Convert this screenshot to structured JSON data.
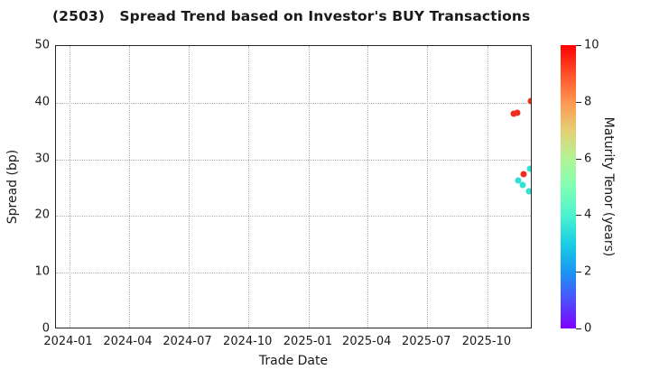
{
  "title": "(2503)   Spread Trend based on Investor's BUY Transactions",
  "chart_data": {
    "type": "scatter",
    "title": "(2503)   Spread Trend based on Investor's BUY Transactions",
    "xlabel": "Trade Date",
    "ylabel": "Spread (bp)",
    "xlim": [
      "2023-12-12",
      "2025-12-09"
    ],
    "ylim": [
      0,
      50
    ],
    "grid": true,
    "x_ticks": [
      {
        "label": "2024-01",
        "date": "2024-01-01"
      },
      {
        "label": "2024-04",
        "date": "2024-04-01"
      },
      {
        "label": "2024-07",
        "date": "2024-07-01"
      },
      {
        "label": "2024-10",
        "date": "2024-10-01"
      },
      {
        "label": "2025-01",
        "date": "2025-01-01"
      },
      {
        "label": "2025-04",
        "date": "2025-04-01"
      },
      {
        "label": "2025-07",
        "date": "2025-07-01"
      },
      {
        "label": "2025-10",
        "date": "2025-10-01"
      }
    ],
    "y_ticks": [
      0,
      10,
      20,
      30,
      40,
      50
    ],
    "points": [
      {
        "date": "2025-11-10",
        "spread": 38.1,
        "maturity_tenor": 9.5,
        "color": "#ee2d1c"
      },
      {
        "date": "2025-11-15",
        "spread": 38.2,
        "maturity_tenor": 9.5,
        "color": "#ee2d1c"
      },
      {
        "date": "2025-11-17",
        "spread": 26.2,
        "maturity_tenor": 3.5,
        "color": "#31e1d1"
      },
      {
        "date": "2025-11-24",
        "spread": 25.4,
        "maturity_tenor": 3.5,
        "color": "#31e1d1"
      },
      {
        "date": "2025-11-25",
        "spread": 27.4,
        "maturity_tenor": 9.5,
        "color": "#ee2d1c"
      },
      {
        "date": "2025-12-03",
        "spread": 24.3,
        "maturity_tenor": 3.5,
        "color": "#31e1d1"
      },
      {
        "date": "2025-12-05",
        "spread": 28.4,
        "maturity_tenor": 3.5,
        "color": "#31e1d1"
      },
      {
        "date": "2025-12-06",
        "spread": 40.3,
        "maturity_tenor": 9.5,
        "color": "#ee2d1c"
      }
    ],
    "colorbar": {
      "label": "Maturity Tenor (years)",
      "range": [
        0,
        10
      ],
      "ticks": [
        0,
        2,
        4,
        6,
        8,
        10
      ],
      "colormap": "rainbow",
      "gradient_stops": [
        "#8000ff",
        "#4d4ffc",
        "#1a96f3",
        "#1acee3",
        "#4df3ce",
        "#80ffb4",
        "#b3f396",
        "#e6ce74",
        "#ff964f",
        "#ff4f28",
        "#ff0000"
      ]
    }
  }
}
